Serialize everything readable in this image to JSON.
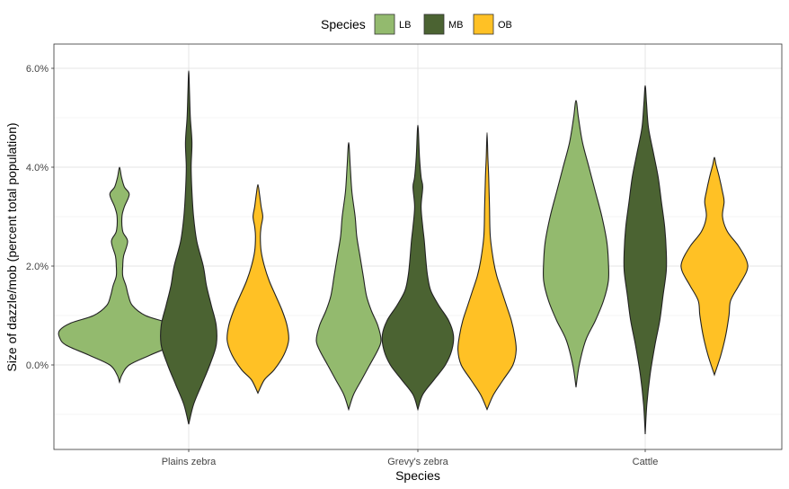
{
  "chart_data": {
    "type": "violin",
    "xlabel": "Species",
    "ylabel": "Size of dazzle/mob (percent total population)",
    "categories": [
      "Plains zebra",
      "Grevy's zebra",
      "Cattle"
    ],
    "ylim": [
      -1.7,
      6.3
    ],
    "y_ticks": [
      0,
      2,
      4,
      6
    ],
    "y_tick_labels": [
      "0.0%",
      "2.0%",
      "4.0%",
      "6.0%"
    ],
    "grid": true,
    "legend": {
      "title": "Species",
      "position": "top",
      "entries": [
        {
          "label": "LB",
          "color": "#93BA6E"
        },
        {
          "label": "MB",
          "color": "#4B6332"
        },
        {
          "label": "OB",
          "color": "#FFC125"
        }
      ]
    },
    "series": [
      {
        "name": "LB",
        "color": "#93BA6E",
        "violins": [
          {
            "category": "Plains zebra",
            "profile": [
              [
                -0.35,
                0.0
              ],
              [
                -0.2,
                0.015
              ],
              [
                0.0,
                0.06
              ],
              [
                0.2,
                0.19
              ],
              [
                0.4,
                0.33
              ],
              [
                0.55,
                0.37
              ],
              [
                0.7,
                0.37
              ],
              [
                0.85,
                0.3
              ],
              [
                1.0,
                0.16
              ],
              [
                1.2,
                0.08
              ],
              [
                1.4,
                0.055
              ],
              [
                1.6,
                0.04
              ],
              [
                1.8,
                0.02
              ],
              [
                2.0,
                0.02
              ],
              [
                2.2,
                0.025
              ],
              [
                2.5,
                0.05
              ],
              [
                2.7,
                0.02
              ],
              [
                3.0,
                0.015
              ],
              [
                3.2,
                0.03
              ],
              [
                3.45,
                0.06
              ],
              [
                3.6,
                0.03
              ],
              [
                3.8,
                0.012
              ],
              [
                4.0,
                0.0
              ]
            ]
          },
          {
            "category": "Grevy's zebra",
            "profile": [
              [
                -0.9,
                0.0
              ],
              [
                -0.6,
                0.03
              ],
              [
                -0.3,
                0.08
              ],
              [
                0.0,
                0.13
              ],
              [
                0.3,
                0.18
              ],
              [
                0.5,
                0.2
              ],
              [
                0.8,
                0.18
              ],
              [
                1.1,
                0.14
              ],
              [
                1.4,
                0.11
              ],
              [
                1.8,
                0.09
              ],
              [
                2.2,
                0.07
              ],
              [
                2.6,
                0.05
              ],
              [
                3.0,
                0.04
              ],
              [
                3.5,
                0.02
              ],
              [
                4.0,
                0.01
              ],
              [
                4.5,
                0.0
              ]
            ]
          },
          {
            "category": "Cattle",
            "profile": [
              [
                -0.45,
                0.0
              ],
              [
                0.0,
                0.02
              ],
              [
                0.5,
                0.06
              ],
              [
                0.9,
                0.12
              ],
              [
                1.3,
                0.17
              ],
              [
                1.7,
                0.2
              ],
              [
                2.1,
                0.2
              ],
              [
                2.5,
                0.19
              ],
              [
                3.0,
                0.16
              ],
              [
                3.5,
                0.12
              ],
              [
                4.0,
                0.08
              ],
              [
                4.5,
                0.04
              ],
              [
                5.0,
                0.015
              ],
              [
                5.35,
                0.0
              ]
            ]
          }
        ]
      },
      {
        "name": "MB",
        "color": "#4B6332",
        "violins": [
          {
            "category": "Plains zebra",
            "profile": [
              [
                -1.2,
                0.0
              ],
              [
                -0.8,
                0.03
              ],
              [
                -0.4,
                0.08
              ],
              [
                0.0,
                0.13
              ],
              [
                0.4,
                0.17
              ],
              [
                0.8,
                0.17
              ],
              [
                1.2,
                0.14
              ],
              [
                1.6,
                0.11
              ],
              [
                2.0,
                0.09
              ],
              [
                2.5,
                0.05
              ],
              [
                3.0,
                0.03
              ],
              [
                3.5,
                0.02
              ],
              [
                4.0,
                0.015
              ],
              [
                4.5,
                0.02
              ],
              [
                5.0,
                0.01
              ],
              [
                5.5,
                0.005
              ],
              [
                5.95,
                0.0
              ]
            ]
          },
          {
            "category": "Grevy's zebra",
            "profile": [
              [
                -0.9,
                0.0
              ],
              [
                -0.6,
                0.03
              ],
              [
                -0.3,
                0.1
              ],
              [
                0.0,
                0.17
              ],
              [
                0.3,
                0.21
              ],
              [
                0.6,
                0.22
              ],
              [
                0.9,
                0.19
              ],
              [
                1.2,
                0.13
              ],
              [
                1.5,
                0.08
              ],
              [
                1.8,
                0.06
              ],
              [
                2.1,
                0.05
              ],
              [
                2.5,
                0.04
              ],
              [
                2.8,
                0.03
              ],
              [
                3.2,
                0.02
              ],
              [
                3.6,
                0.03
              ],
              [
                3.8,
                0.02
              ],
              [
                4.2,
                0.01
              ],
              [
                4.85,
                0.0
              ]
            ]
          },
          {
            "category": "Cattle",
            "profile": [
              [
                -1.4,
                0.0
              ],
              [
                -0.8,
                0.01
              ],
              [
                -0.2,
                0.03
              ],
              [
                0.4,
                0.06
              ],
              [
                0.9,
                0.09
              ],
              [
                1.4,
                0.11
              ],
              [
                1.9,
                0.13
              ],
              [
                2.3,
                0.13
              ],
              [
                2.8,
                0.12
              ],
              [
                3.3,
                0.1
              ],
              [
                3.8,
                0.08
              ],
              [
                4.3,
                0.05
              ],
              [
                4.8,
                0.02
              ],
              [
                5.3,
                0.008
              ],
              [
                5.65,
                0.0
              ]
            ]
          }
        ]
      },
      {
        "name": "OB",
        "color": "#FFC125",
        "violins": [
          {
            "category": "Plains zebra",
            "profile": [
              [
                -0.57,
                0.0
              ],
              [
                -0.3,
                0.04
              ],
              [
                -0.1,
                0.1
              ],
              [
                0.2,
                0.16
              ],
              [
                0.5,
                0.19
              ],
              [
                0.8,
                0.18
              ],
              [
                1.1,
                0.15
              ],
              [
                1.4,
                0.11
              ],
              [
                1.7,
                0.07
              ],
              [
                2.0,
                0.04
              ],
              [
                2.3,
                0.02
              ],
              [
                2.6,
                0.015
              ],
              [
                2.8,
                0.02
              ],
              [
                3.0,
                0.03
              ],
              [
                3.2,
                0.02
              ],
              [
                3.45,
                0.01
              ],
              [
                3.65,
                0.0
              ]
            ]
          },
          {
            "category": "Grevy's zebra",
            "profile": [
              [
                -0.9,
                0.0
              ],
              [
                -0.6,
                0.04
              ],
              [
                -0.3,
                0.1
              ],
              [
                0.0,
                0.16
              ],
              [
                0.3,
                0.18
              ],
              [
                0.6,
                0.17
              ],
              [
                0.9,
                0.15
              ],
              [
                1.2,
                0.12
              ],
              [
                1.5,
                0.09
              ],
              [
                1.8,
                0.06
              ],
              [
                2.1,
                0.04
              ],
              [
                2.6,
                0.02
              ],
              [
                3.2,
                0.015
              ],
              [
                3.8,
                0.01
              ],
              [
                4.2,
                0.005
              ],
              [
                4.7,
                0.0
              ]
            ]
          },
          {
            "category": "Cattle",
            "profile": [
              [
                -0.2,
                0.0
              ],
              [
                0.2,
                0.04
              ],
              [
                0.6,
                0.07
              ],
              [
                1.0,
                0.09
              ],
              [
                1.3,
                0.1
              ],
              [
                1.6,
                0.15
              ],
              [
                1.9,
                0.2
              ],
              [
                2.1,
                0.2
              ],
              [
                2.4,
                0.15
              ],
              [
                2.7,
                0.08
              ],
              [
                3.0,
                0.05
              ],
              [
                3.3,
                0.06
              ],
              [
                3.5,
                0.05
              ],
              [
                3.8,
                0.03
              ],
              [
                4.05,
                0.01
              ],
              [
                4.2,
                0.0
              ]
            ]
          }
        ]
      }
    ]
  }
}
